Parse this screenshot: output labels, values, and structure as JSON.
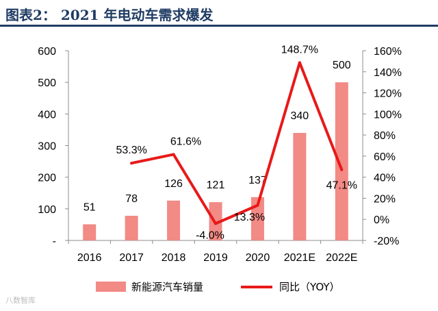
{
  "figure": {
    "title": "图表2：  2021 年电动车需求爆发",
    "watermark": "八数智库"
  },
  "chart_data": {
    "type": "bar+line",
    "categories": [
      "2016",
      "2017",
      "2018",
      "2019",
      "2020",
      "2021E",
      "2022E"
    ],
    "series": [
      {
        "name": "新能源汽车销量",
        "type": "bar",
        "axis": "left",
        "values": [
          51,
          78,
          126,
          121,
          137,
          340,
          500
        ],
        "labels": [
          "51",
          "78",
          "126",
          "121",
          "137",
          "340",
          "500"
        ],
        "color": "#f28a85"
      },
      {
        "name": "同比（YOY）",
        "type": "line",
        "axis": "right",
        "values": [
          null,
          53.3,
          61.6,
          -4.0,
          13.3,
          148.7,
          47.1
        ],
        "labels": [
          "",
          "53.3%",
          "61.6%",
          "-4.0%",
          "13.3%",
          "148.7%",
          "47.1%"
        ],
        "color": "#e81919"
      }
    ],
    "y_left": {
      "min": 0,
      "max": 600,
      "ticks": [
        "-",
        "100",
        "200",
        "300",
        "400",
        "500",
        "600"
      ]
    },
    "y_right": {
      "min": -20,
      "max": 160,
      "ticks": [
        "-20%",
        "0%",
        "20%",
        "40%",
        "60%",
        "80%",
        "100%",
        "120%",
        "140%",
        "160%"
      ]
    },
    "legend": {
      "position": "bottom",
      "items": [
        "新能源汽车销量",
        "同比（YOY）"
      ]
    },
    "gridlines": false
  }
}
